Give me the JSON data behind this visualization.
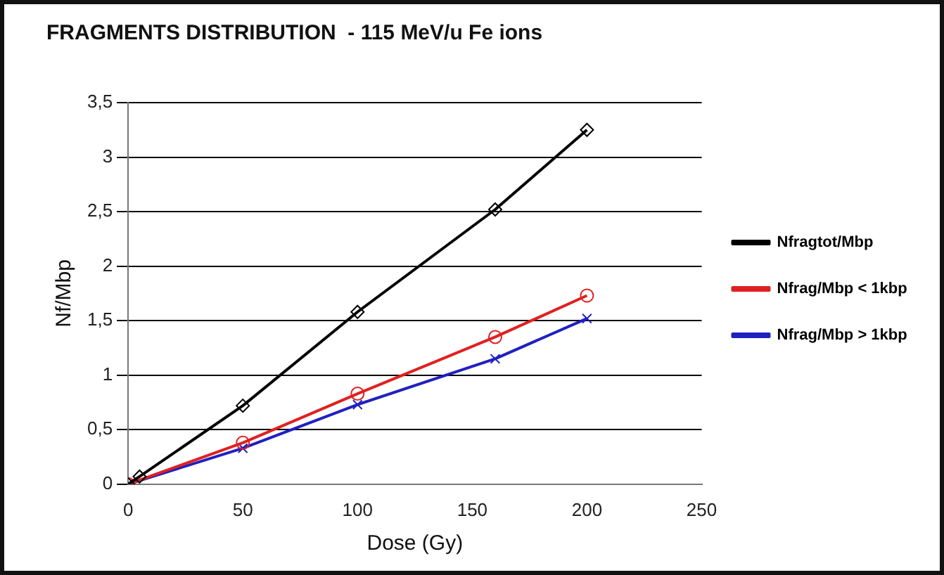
{
  "chart_data": {
    "type": "line",
    "title": "FRAGMENTS DISTRIBUTION  - 115 MeV/u Fe ions",
    "xlabel": "Dose (Gy)",
    "ylabel": "Nf/Mbp",
    "x": [
      0,
      5,
      50,
      100,
      160,
      200
    ],
    "series": [
      {
        "name": "Nfragtot/Mbp",
        "color": "#000000",
        "marker": "diamond",
        "values": [
          0,
          0.07,
          0.72,
          1.58,
          2.52,
          3.25
        ]
      },
      {
        "name": "Nfrag/Mbp < 1kbp",
        "color": "#e02020",
        "marker": "circle",
        "values": [
          0,
          null,
          0.38,
          0.83,
          1.35,
          1.73
        ]
      },
      {
        "name": "Nfrag/Mbp > 1kbp",
        "color": "#2020c0",
        "marker": "cross",
        "values": [
          0,
          null,
          0.33,
          0.73,
          1.15,
          1.52
        ]
      }
    ],
    "xlim": [
      0,
      250
    ],
    "xticks": [
      0,
      50,
      100,
      150,
      200,
      250
    ],
    "ylim": [
      0,
      3.5
    ],
    "yticks": [
      0,
      {
        "value": 0.5,
        "label": "0,5"
      },
      1,
      {
        "value": 1.5,
        "label": "1,5"
      },
      2,
      {
        "value": 2.5,
        "label": "2,5"
      },
      3,
      {
        "value": 3.5,
        "label": "3,5"
      }
    ],
    "grid": "y",
    "legend": "right",
    "line_style": "solid"
  }
}
